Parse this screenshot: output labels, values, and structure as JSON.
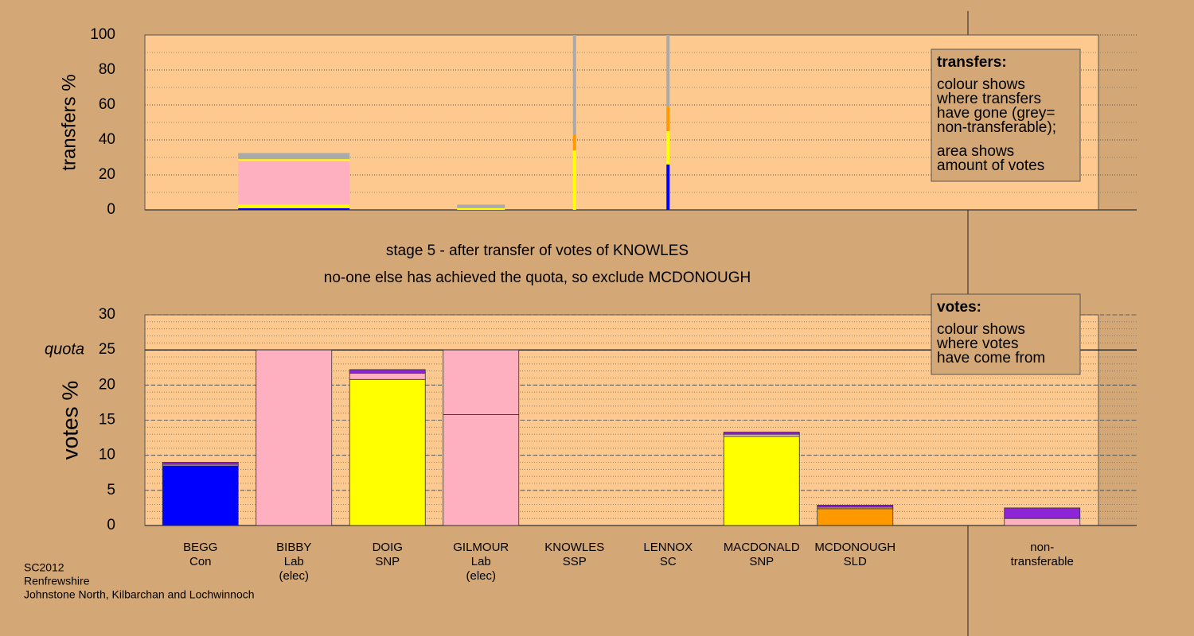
{
  "chart_data": [
    {
      "type": "stacked-bar",
      "ylabel": "transfers %",
      "ylim": [
        0,
        100
      ],
      "yticks": [
        0,
        20,
        40,
        60,
        80,
        100
      ],
      "minor_grid": 10,
      "grid": true,
      "amounts": [
        null,
        7,
        null,
        3,
        0.2,
        0.2,
        null,
        null,
        null,
        null
      ],
      "series": [
        {
          "color": "#0000ff",
          "values": [
            null,
            1,
            null,
            null,
            null,
            26,
            null,
            null,
            null,
            null
          ]
        },
        {
          "color": "#ffff00",
          "values": [
            null,
            2,
            null,
            1,
            34,
            19,
            null,
            null,
            null,
            null
          ]
        },
        {
          "color": "#ffb0c0",
          "values": [
            null,
            25,
            null,
            null,
            null,
            null,
            null,
            null,
            null,
            null
          ]
        },
        {
          "color": "#ffff00",
          "values": [
            null,
            1,
            null,
            null,
            null,
            null,
            null,
            null,
            null,
            null
          ]
        },
        {
          "color": "#ff9900",
          "values": [
            null,
            null,
            null,
            null,
            9,
            14,
            null,
            null,
            null,
            null
          ]
        },
        {
          "color": "#aaaaaa",
          "values": [
            null,
            3.5,
            null,
            2,
            57,
            41,
            null,
            null,
            null,
            null
          ]
        }
      ],
      "legend": {
        "title": "transfers:",
        "lines": [
          "colour shows",
          "where transfers",
          "have gone (grey=",
          "non-transferable);",
          "area shows",
          "amount of votes"
        ]
      }
    },
    {
      "type": "stacked-bar",
      "ylabel": "votes %",
      "ylim": [
        0,
        30
      ],
      "yticks": [
        0,
        5,
        10,
        15,
        20,
        25,
        30
      ],
      "minor_grid": 1,
      "grid": true,
      "quota": 25,
      "quota_label": "quota",
      "categories": [
        [
          "BEGG",
          "Con"
        ],
        [
          "BIBBY",
          "Lab",
          "(elec)"
        ],
        [
          "DOIG",
          "SNP"
        ],
        [
          "GILMOUR",
          "Lab",
          "(elec)"
        ],
        [
          "KNOWLES",
          "SSP"
        ],
        [
          "LENNOX",
          "SC"
        ],
        [
          "MACDONALD",
          "SNP"
        ],
        [
          "MCDONOUGH",
          "SLD"
        ],
        null,
        [
          "non-",
          "transferable"
        ]
      ],
      "series": [
        {
          "color": "#0000ff",
          "values": [
            8.5,
            null,
            null,
            null,
            0,
            0,
            null,
            null,
            null,
            null
          ]
        },
        {
          "color": "#ffff00",
          "values": [
            null,
            null,
            20.8,
            null,
            null,
            null,
            12.7,
            null,
            null,
            null
          ]
        },
        {
          "color": "#ff9900",
          "values": [
            null,
            null,
            null,
            null,
            null,
            null,
            null,
            2.4,
            null,
            null
          ]
        },
        {
          "color": "#ffb0c0",
          "values": [
            0.2,
            25,
            0.9,
            15.8,
            null,
            null,
            0.3,
            0.2,
            null,
            1.0
          ]
        },
        {
          "color": "#ffb0c0",
          "values": [
            null,
            null,
            null,
            9.2,
            null,
            null,
            null,
            null,
            null,
            null
          ]
        },
        {
          "color": "#8e24d8",
          "values": [
            0.3,
            null,
            0.5,
            null,
            null,
            null,
            0.3,
            0.3,
            null,
            1.5
          ]
        }
      ],
      "legend": {
        "title": "votes:",
        "lines": [
          "colour shows",
          "where votes",
          "have come from"
        ]
      }
    }
  ],
  "stage": [
    "stage 5 - after transfer of votes of KNOWLES",
    "no-one else has achieved the quota, so exclude MCDONOUGH"
  ],
  "footer": [
    "SC2012",
    "Renfrewshire",
    "Johnstone North, Kilbarchan and Lochwinnoch"
  ]
}
